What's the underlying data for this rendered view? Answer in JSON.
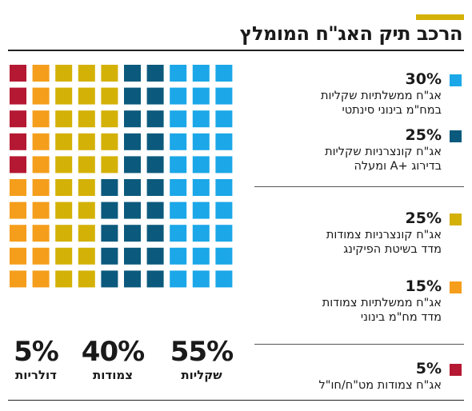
{
  "title": "הרכב תיק האג\"ח המומלץ",
  "colors": {
    "accent": "#d4b106",
    "light_blue": "#1ba7e8",
    "dark_blue": "#0b5a7d",
    "gold": "#d4b106",
    "orange": "#f59e1c",
    "red": "#b51832"
  },
  "legend": [
    {
      "pct": "30%",
      "lines": [
        "אג\"ח ממשלתיות שקליות",
        "במח\"מ בינוני סינתטי"
      ],
      "color": "#1ba7e8"
    },
    {
      "pct": "25%",
      "lines": [
        "אג\"ח קונצרניות שקליות",
        "בדירוג +A ומעלה"
      ],
      "color": "#0b5a7d"
    },
    {
      "pct": "25%",
      "lines": [
        "אג\"ח קונצרניות צמודות",
        "מדד בשיטת הפיקינג"
      ],
      "color": "#d4b106"
    },
    {
      "pct": "15%",
      "lines": [
        "אג\"ח ממשלתיות צמודות",
        "מדד מח\"מ בינוני"
      ],
      "color": "#f59e1c"
    },
    {
      "pct": "5%",
      "lines": [
        "אג\"ח צמודות מט\"ח/חו\"ל"
      ],
      "color": "#b51832"
    }
  ],
  "groups": [
    {
      "pct": "5%",
      "label": "דולריות"
    },
    {
      "pct": "40%",
      "label": "צמודות"
    },
    {
      "pct": "55%",
      "label": "שקליות"
    }
  ],
  "chart_data": {
    "type": "waffle",
    "title": "הרכב תיק האג\"ח המומלץ",
    "grid": {
      "rows": 10,
      "cols": 10
    },
    "series": [
      {
        "name": "אג\"ח ממשלתיות שקליות במח\"מ בינוני סינתטי",
        "value": 30,
        "color": "#1ba7e8"
      },
      {
        "name": "אג\"ח קונצרניות שקליות בדירוג +A ומעלה",
        "value": 25,
        "color": "#0b5a7d"
      },
      {
        "name": "אג\"ח קונצרניות צמודות מדד בשיטת הפיקינג",
        "value": 25,
        "color": "#d4b106"
      },
      {
        "name": "אג\"ח ממשלתיות צמודות מדד מח\"מ בינוני",
        "value": 15,
        "color": "#f59e1c"
      },
      {
        "name": "אג\"ח צמודות מט\"ח/חו\"ל",
        "value": 5,
        "color": "#b51832"
      }
    ],
    "groups": [
      {
        "name": "דולריות",
        "value": 5
      },
      {
        "name": "צמודות",
        "value": 40
      },
      {
        "name": "שקליות",
        "value": 55
      }
    ]
  }
}
